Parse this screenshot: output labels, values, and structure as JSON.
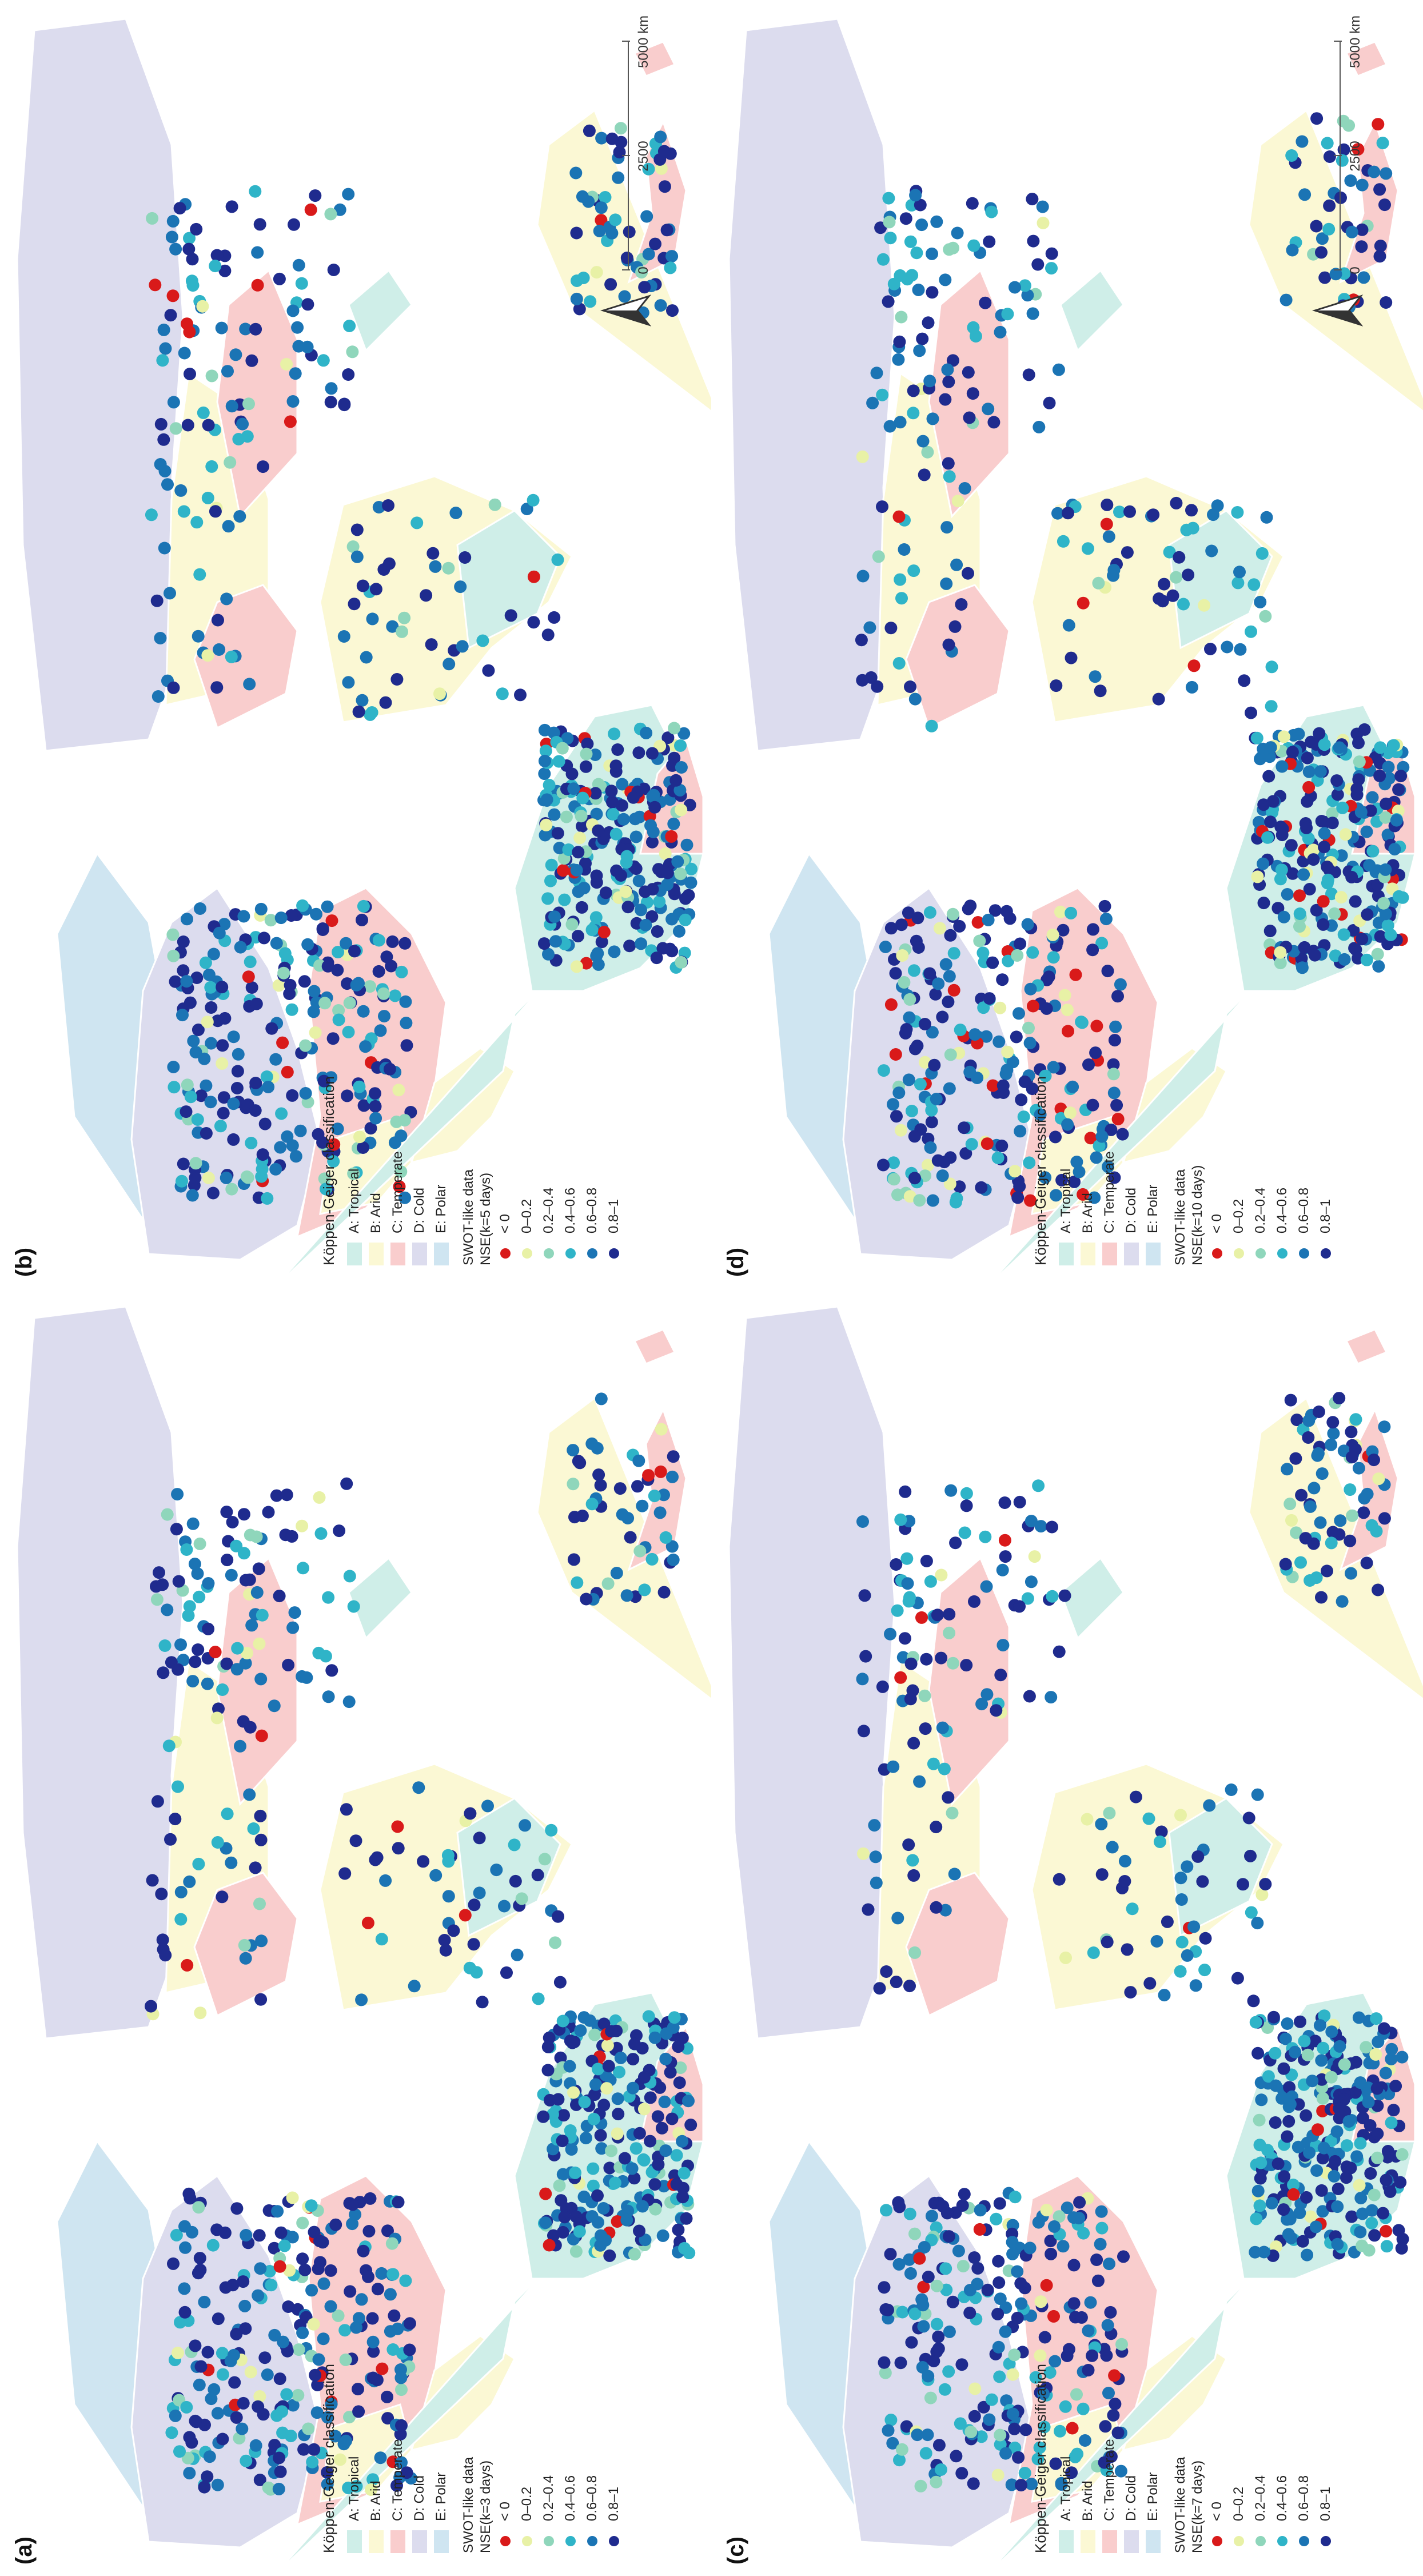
{
  "legend": {
    "classification_title": "Köppen-Geiger classification",
    "classes": [
      {
        "label": "A: Tropical",
        "color": "#cfeee8"
      },
      {
        "label": "B: Arid",
        "color": "#fbf8d4"
      },
      {
        "label": "C: Temperate",
        "color": "#f9cdcd"
      },
      {
        "label": "D: Cold",
        "color": "#dcdcee"
      },
      {
        "label": "E: Polar",
        "color": "#cfe5f1"
      }
    ],
    "data_title": "SWOT-like data",
    "nse_bins": [
      {
        "label": "< 0",
        "color": "#d91a1a"
      },
      {
        "label": "0–0.2",
        "color": "#e8f1a6"
      },
      {
        "label": "0.2–0.4",
        "color": "#8fd6bb"
      },
      {
        "label": "0.4–0.6",
        "color": "#2fb4c8"
      },
      {
        "label": "0.6–0.8",
        "color": "#1b74b4"
      },
      {
        "label": "0.8–1",
        "color": "#1f2b8e"
      }
    ]
  },
  "panels": [
    {
      "tag": "(a)",
      "nse_label": "NSE(k=3 days)"
    },
    {
      "tag": "(b)",
      "nse_label": "NSE(k=5 days)"
    },
    {
      "tag": "(c)",
      "nse_label": "NSE(k=7 days)"
    },
    {
      "tag": "(d)",
      "nse_label": "NSE(k=10 days)"
    }
  ],
  "scale": {
    "labels": [
      "0",
      "2500",
      "5000 km"
    ]
  },
  "colors": {
    "ocean": "#ffffff",
    "borders": "#ffffff"
  }
}
